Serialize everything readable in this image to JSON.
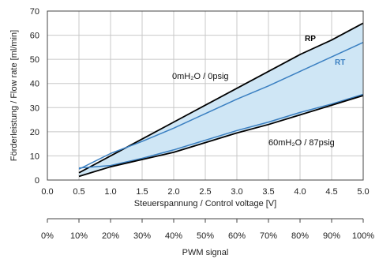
{
  "chart_data": {
    "type": "area",
    "xlabel": "Steuerspannung / Control voltage [V]",
    "ylabel": "Förderleistung / Flow rate [ml/min]",
    "xlim": [
      0,
      5
    ],
    "ylim": [
      0,
      70
    ],
    "x_ticks": [
      "0.0",
      "0.5",
      "1.0",
      "1.5",
      "2.0",
      "2.5",
      "3.0",
      "3.5",
      "4.0",
      "4.5",
      "5.0"
    ],
    "y_ticks": [
      "0",
      "10",
      "20",
      "30",
      "40",
      "50",
      "60",
      "70"
    ],
    "grid": true,
    "x": [
      0.5,
      1.0,
      1.5,
      2.0,
      2.5,
      3.0,
      3.5,
      4.0,
      4.5,
      5.0
    ],
    "series": [
      {
        "name": "RP",
        "color": "#000000",
        "values": [
          3,
          10,
          17,
          24,
          31,
          38,
          45,
          52,
          58,
          65
        ]
      },
      {
        "name": "RT",
        "color": "#3a7fc1",
        "values": [
          4.5,
          11,
          16,
          21.5,
          27.5,
          33.5,
          39,
          45,
          51,
          57
        ]
      },
      {
        "name": "",
        "color": "#3a7fc1",
        "values": [
          5,
          6,
          9,
          12.5,
          16.5,
          20.5,
          24,
          28,
          31.5,
          35.5
        ]
      },
      {
        "name": "",
        "color": "#000000",
        "values": [
          1.5,
          5.5,
          8.5,
          11.5,
          15.5,
          19.5,
          23,
          27,
          31,
          35
        ]
      }
    ],
    "fill_color": "#cfe6f5",
    "annotations": {
      "upper": "0mH₂O / 0psig",
      "lower": "60mH₂O / 87psig"
    },
    "secondary_axis": {
      "label": "PWM signal",
      "ticks": [
        "0%",
        "10%",
        "20%",
        "30%",
        "40%",
        "50%",
        "60%",
        "70%",
        "80%",
        "90%",
        "100%"
      ]
    }
  }
}
